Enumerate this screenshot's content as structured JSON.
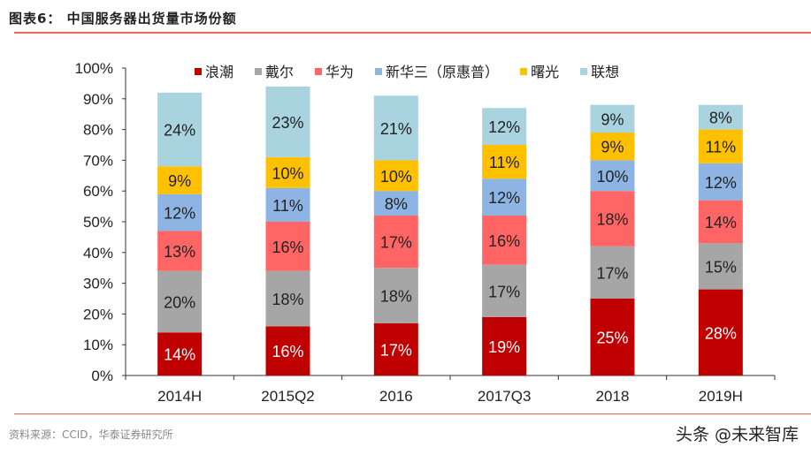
{
  "header": {
    "title": "图表6：  中国服务器出货量市场份额"
  },
  "footer": {
    "source": "资料来源：CCID，华泰证券研究所",
    "watermark": "头条 @未来智库"
  },
  "chart_data": {
    "type": "bar",
    "stacked": true,
    "categories": [
      "2014H",
      "2015Q2",
      "2016",
      "2017Q3",
      "2018",
      "2019H"
    ],
    "series": [
      {
        "name": "浪潮",
        "color": "#C00000",
        "label_color": "#FFFFFF",
        "values": [
          14,
          16,
          17,
          19,
          25,
          28
        ]
      },
      {
        "name": "戴尔",
        "color": "#A6A6A6",
        "label_color": "#222222",
        "values": [
          20,
          18,
          18,
          17,
          17,
          15
        ]
      },
      {
        "name": "华为",
        "color": "#FF6565",
        "label_color": "#222222",
        "values": [
          13,
          16,
          17,
          16,
          18,
          14
        ]
      },
      {
        "name": "新华三（原惠普）",
        "color": "#8EB4E3",
        "label_color": "#222222",
        "values": [
          12,
          11,
          8,
          12,
          10,
          12
        ]
      },
      {
        "name": "曙光",
        "color": "#FFC000",
        "label_color": "#222222",
        "values": [
          9,
          10,
          10,
          11,
          9,
          11
        ]
      },
      {
        "name": "联想",
        "color": "#A9D3DF",
        "label_color": "#222222",
        "values": [
          24,
          23,
          21,
          12,
          9,
          8
        ]
      }
    ],
    "ylim": [
      0,
      100
    ],
    "yticks": [
      "0%",
      "10%",
      "20%",
      "30%",
      "40%",
      "50%",
      "60%",
      "70%",
      "80%",
      "90%",
      "100%"
    ],
    "legend": "top",
    "grid": false,
    "xlabel": "",
    "ylabel": ""
  }
}
